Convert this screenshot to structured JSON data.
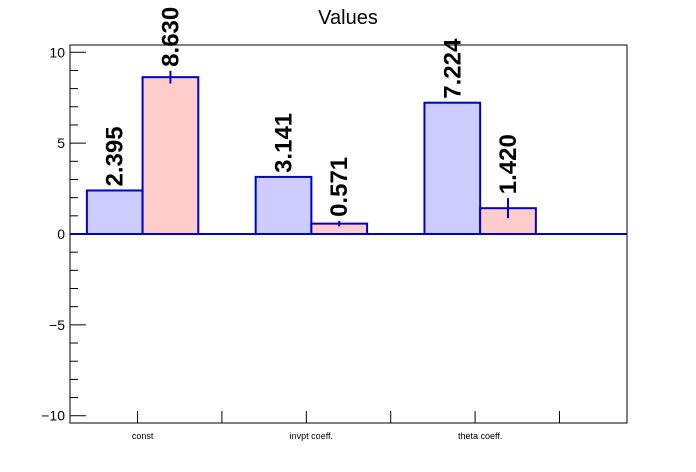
{
  "chart_data": {
    "type": "bar",
    "title": "Values",
    "categories": [
      "const",
      "invpt coeff.",
      "theta coeff."
    ],
    "series": [
      {
        "values": [
          2.395,
          3.141,
          7.224
        ],
        "labels": [
          "2.395",
          "3.141",
          "7.224"
        ],
        "errors": [
          0,
          0,
          0
        ],
        "color": "#ccccff"
      },
      {
        "values": [
          8.63,
          0.571,
          1.42
        ],
        "labels": [
          "8.630",
          "0.571",
          "1.420"
        ],
        "errors": [
          0.35,
          0.15,
          0.55
        ],
        "color": "#ffcccc"
      }
    ],
    "ylim": [
      -10.4,
      10.4
    ],
    "yticks": [
      -10,
      -5,
      0,
      5,
      10
    ],
    "ytick_labels": [
      "−10",
      "−5",
      "0",
      "5",
      "10"
    ],
    "bar_outline_color": "#0000cc",
    "grid": false,
    "xlabel": "",
    "ylabel": ""
  }
}
